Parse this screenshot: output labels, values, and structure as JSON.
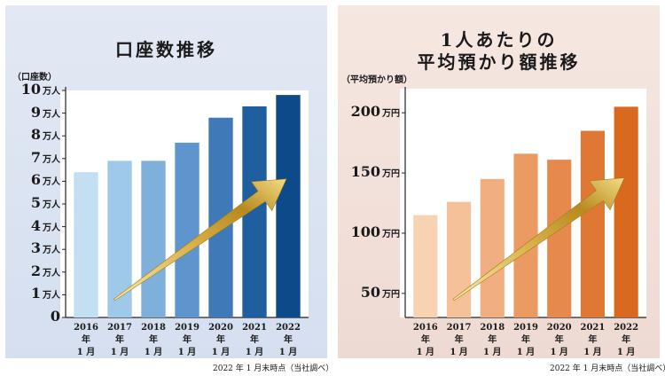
{
  "left_panel": {
    "title": "口座数推移",
    "unit_label": "（口座数）",
    "note": "2022 年 1 月末時点（当社調べ）"
  },
  "right_panel": {
    "title_line1": "1人あたりの",
    "title_line2": "平均預かり額推移",
    "unit_label": "（平均預かり額）",
    "note": "2022 年 1 月末時点（当社調べ）"
  },
  "chart_data": [
    {
      "type": "bar",
      "title": "口座数推移",
      "ylabel": "（口座数）",
      "categories": [
        [
          "2016 年",
          "1 月"
        ],
        [
          "2017 年",
          "1 月"
        ],
        [
          "2018 年",
          "1 月"
        ],
        [
          "2019 年",
          "1 月"
        ],
        [
          "2020 年",
          "1 月"
        ],
        [
          "2021 年",
          "1 月"
        ],
        [
          "2022 年",
          "1 月"
        ]
      ],
      "values": [
        6.4,
        6.9,
        6.9,
        7.7,
        8.8,
        9.3,
        9.8
      ],
      "ylim": [
        0,
        10
      ],
      "yticks": [
        {
          "value": 0,
          "num": "0",
          "unit": ""
        },
        {
          "value": 1,
          "num": "1",
          "unit": "万人"
        },
        {
          "value": 2,
          "num": "2",
          "unit": "万人"
        },
        {
          "value": 3,
          "num": "3",
          "unit": "万人"
        },
        {
          "value": 4,
          "num": "4",
          "unit": "万人"
        },
        {
          "value": 5,
          "num": "5",
          "unit": "万人"
        },
        {
          "value": 6,
          "num": "6",
          "unit": "万人"
        },
        {
          "value": 7,
          "num": "7",
          "unit": "万人"
        },
        {
          "value": 8,
          "num": "8",
          "unit": "万人"
        },
        {
          "value": 9,
          "num": "9",
          "unit": "万人"
        },
        {
          "value": 10,
          "num": "10",
          "unit": "万人"
        }
      ],
      "colors": [
        "#c3e0f2",
        "#9fc9e8",
        "#7fb0db",
        "#5e95cc",
        "#3f79b8",
        "#1f5e9f",
        "#0c4a8a"
      ],
      "grid": false,
      "annotation": "gold upward arrow"
    },
    {
      "type": "bar",
      "title": "1人あたりの平均預かり額推移",
      "ylabel": "（平均預かり額）",
      "categories": [
        [
          "2016 年",
          "1 月"
        ],
        [
          "2017 年",
          "1 月"
        ],
        [
          "2018 年",
          "1 月"
        ],
        [
          "2019 年",
          "1 月"
        ],
        [
          "2020 年",
          "1 月"
        ],
        [
          "2021 年",
          "1 月"
        ],
        [
          "2022 年",
          "1 月"
        ]
      ],
      "values": [
        115,
        126,
        145,
        166,
        161,
        185,
        205
      ],
      "ylim": [
        30,
        220
      ],
      "yticks": [
        {
          "value": 50,
          "num": "50",
          "unit": "万円"
        },
        {
          "value": 100,
          "num": "100",
          "unit": "万円"
        },
        {
          "value": 150,
          "num": "150",
          "unit": "万円"
        },
        {
          "value": 200,
          "num": "200",
          "unit": "万円"
        }
      ],
      "colors": [
        "#f8d3b2",
        "#f5c199",
        "#f1ae80",
        "#eb9a62",
        "#e58a4c",
        "#df7834",
        "#d8691f"
      ],
      "grid": false,
      "annotation": "gold upward arrow"
    }
  ]
}
